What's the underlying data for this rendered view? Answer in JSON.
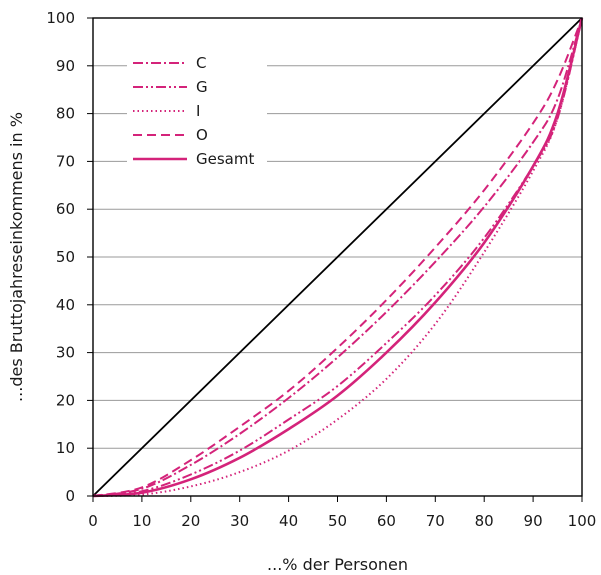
{
  "chart_data": {
    "type": "line",
    "title": "",
    "xlabel": "...% der Personen",
    "ylabel": "...des Bruttojahreseinkommens in %",
    "xlim": [
      0,
      100
    ],
    "ylim": [
      0,
      100
    ],
    "x_ticks": [
      "0",
      "10",
      "20",
      "30",
      "40",
      "50",
      "60",
      "70",
      "80",
      "90",
      "100"
    ],
    "y_ticks": [
      "0",
      "10",
      "20",
      "30",
      "40",
      "50",
      "60",
      "70",
      "80",
      "90",
      "100"
    ],
    "grid": "horizontal",
    "legend_position": "top-left",
    "line_color": "#d4237a",
    "diagonal_color": "#000000",
    "x": [
      0,
      10,
      20,
      30,
      40,
      50,
      60,
      70,
      80,
      90,
      95,
      100
    ],
    "series": [
      {
        "name": "C",
        "dash": "dashdot",
        "values": [
          0,
          1.5,
          6.5,
          13,
          20.5,
          29,
          38.5,
          49,
          60.5,
          74,
          83,
          100
        ]
      },
      {
        "name": "G",
        "dash": "dashdotdot",
        "values": [
          0,
          1,
          4.5,
          9.5,
          16,
          23,
          32,
          42,
          54,
          69,
          79,
          100
        ]
      },
      {
        "name": "I",
        "dash": "dotted",
        "values": [
          0,
          0.3,
          2,
          5,
          9.5,
          16,
          24.5,
          36,
          51,
          68,
          79,
          100
        ]
      },
      {
        "name": "O",
        "dash": "dashed",
        "values": [
          0,
          1.8,
          7.5,
          14.5,
          22,
          31,
          41,
          52,
          64,
          78,
          87,
          100
        ]
      },
      {
        "name": "Gesamt",
        "dash": "solid",
        "values": [
          0,
          0.7,
          3.5,
          8,
          14,
          21,
          30,
          40.5,
          53,
          69,
          80,
          100
        ]
      }
    ]
  }
}
